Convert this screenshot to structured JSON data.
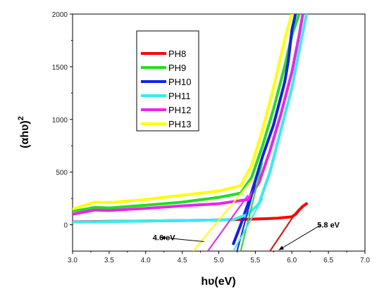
{
  "chart_data": {
    "type": "line",
    "title": "",
    "xlabel": "hʋ(eV)",
    "ylabel_main": "(αhʋ)",
    "ylabel_sup": "2",
    "xlim": [
      3.0,
      7.0
    ],
    "ylim": [
      -250,
      2000
    ],
    "x_ticks": [
      3.0,
      3.5,
      4.0,
      4.5,
      5.0,
      5.5,
      6.0,
      6.5,
      7.0
    ],
    "x_tick_labels": [
      "3.0",
      "3.5",
      "4.0",
      "4.5",
      "5.0",
      "5.5",
      "6.0",
      "6.5",
      "7.0"
    ],
    "y_ticks": [
      0,
      500,
      1000,
      1500,
      2000
    ],
    "y_tick_labels": [
      "0",
      "500",
      "1000",
      "1500",
      "2000"
    ],
    "grid": false,
    "legend_position": "upper-left-inside",
    "series": [
      {
        "name": "PH8",
        "color": "#ff0000",
        "x": [
          3.0,
          3.5,
          4.0,
          4.5,
          5.0,
          5.4,
          5.8,
          6.0,
          6.05,
          6.1,
          6.15,
          6.2
        ],
        "y": [
          28,
          32,
          36,
          40,
          45,
          52,
          62,
          75,
          100,
          140,
          175,
          200
        ]
      },
      {
        "name": "PH9",
        "color": "#22dd22",
        "x": [
          3.0,
          3.15,
          3.3,
          3.5,
          4.0,
          4.5,
          5.0,
          5.3,
          5.45,
          5.6,
          5.75,
          5.9,
          6.0,
          6.1
        ],
        "y": [
          130,
          145,
          165,
          160,
          185,
          215,
          260,
          300,
          450,
          750,
          1100,
          1500,
          1800,
          2000
        ]
      },
      {
        "name": "PH10",
        "color": "#1020ee",
        "x": [
          5.2,
          5.3,
          5.4,
          5.5,
          5.6,
          5.75,
          5.9,
          5.95,
          6.0,
          6.05
        ],
        "y": [
          -180,
          0,
          200,
          420,
          650,
          950,
          1350,
          1550,
          1850,
          2000
        ]
      },
      {
        "name": "PH11",
        "color": "#33eeee",
        "x": [
          3.0,
          3.5,
          4.0,
          4.5,
          5.0,
          5.2,
          5.4,
          5.55,
          5.7,
          5.85,
          6.0,
          6.1,
          6.2
        ],
        "y": [
          25,
          30,
          35,
          40,
          45,
          50,
          100,
          200,
          500,
          900,
          1300,
          1650,
          2000
        ]
      },
      {
        "name": "PH12",
        "color": "#ee22ee",
        "x": [
          3.0,
          3.15,
          3.3,
          3.5,
          4.0,
          4.5,
          5.0,
          5.4,
          5.55,
          5.7,
          5.85,
          6.0,
          6.1,
          6.15
        ],
        "y": [
          100,
          120,
          140,
          135,
          155,
          180,
          200,
          240,
          400,
          700,
          1050,
          1450,
          1800,
          2000
        ]
      },
      {
        "name": "PH13",
        "color": "#ffff00",
        "x": [
          3.0,
          3.15,
          3.3,
          3.5,
          4.0,
          4.5,
          5.0,
          5.3,
          5.45,
          5.6,
          5.75,
          5.9,
          6.0
        ],
        "y": [
          150,
          180,
          215,
          210,
          240,
          280,
          320,
          370,
          560,
          900,
          1300,
          1750,
          2000
        ]
      }
    ],
    "fit_lines": [
      {
        "color": "#ff0000",
        "x": [
          5.7,
          6.05
        ],
        "y": [
          -250,
          110
        ]
      },
      {
        "color": "#22dd22",
        "x": [
          5.3,
          5.6
        ],
        "y": [
          -250,
          600
        ]
      },
      {
        "color": "#1020ee",
        "x": [
          5.25,
          5.55
        ],
        "y": [
          -250,
          520
        ]
      },
      {
        "color": "#33eeee",
        "x": [
          5.2,
          5.6
        ],
        "y": [
          -250,
          250
        ]
      },
      {
        "color": "#ee22ee",
        "x": [
          4.85,
          5.4
        ],
        "y": [
          -250,
          280
        ]
      },
      {
        "color": "#ffff00",
        "x": [
          4.65,
          5.45
        ],
        "y": [
          -250,
          420
        ]
      }
    ],
    "annotations": [
      {
        "text": "4.6 eV",
        "text_x": 4.25,
        "text_y": -120,
        "arrow_from": [
          4.8,
          -160
        ],
        "arrow_to": [
          4.2,
          -120
        ]
      },
      {
        "text": "5.8 eV",
        "text_x": 6.5,
        "text_y": 0,
        "arrow_from": [
          6.4,
          0
        ],
        "arrow_to": [
          5.82,
          -240
        ]
      }
    ]
  }
}
